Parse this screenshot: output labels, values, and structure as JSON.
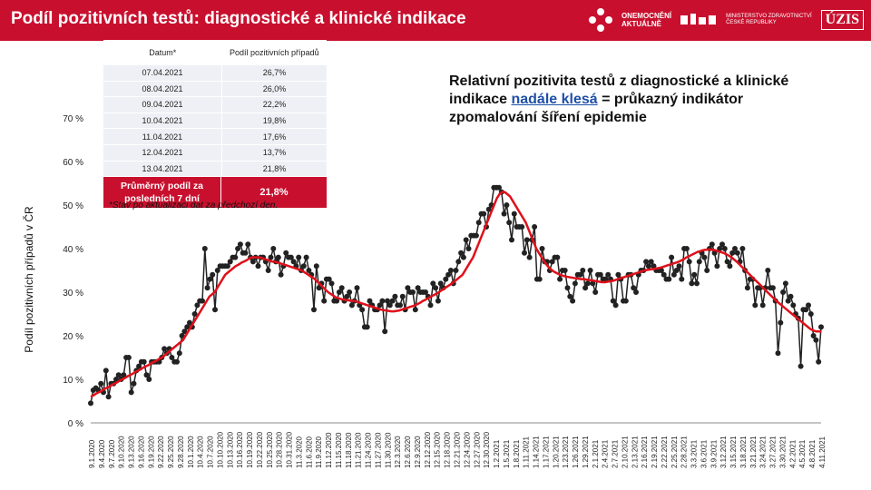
{
  "header": {
    "title": "Podíl pozitivních testů: diagnostické a klinické indikace",
    "logo_onemocneni": "ONEMOCNĚNÍ",
    "logo_aktualne": "AKTUÁLNĚ",
    "logo_mzcr_line1": "MINISTERSTVO ZDRAVOTNICTVÍ",
    "logo_mzcr_line2": "ČESKÉ REPUBLIKY",
    "logo_uzis": "ÚZIS",
    "colors": {
      "bar": "#c8102e",
      "text": "#ffffff"
    }
  },
  "headline": {
    "part1": "Relativní pozitivita testů z diagnostické a klinické indikace ",
    "highlight": "nadále klesá",
    "part2": " = průkazný indikátor zpomalování šíření epidemie",
    "highlight_color": "#1f4fa8"
  },
  "table": {
    "col1_header": "Datum*",
    "col2_header": "Podíl pozitivních případů",
    "rows": [
      {
        "date": "07.04.2021",
        "value": "26,7%"
      },
      {
        "date": "08.04.2021",
        "value": "26,0%"
      },
      {
        "date": "09.04.2021",
        "value": "22,2%"
      },
      {
        "date": "10.04.2021",
        "value": "19,8%"
      },
      {
        "date": "11.04.2021",
        "value": "17,6%"
      },
      {
        "date": "12.04.2021",
        "value": "13,7%"
      },
      {
        "date": "13.04.2021",
        "value": "21,8%"
      }
    ],
    "avg_label": "Průměrný podíl za posledních 7 dní",
    "avg_value": "21,8%",
    "note": "*Stav po aktualizaci dat za předchozí den."
  },
  "chart_data": {
    "type": "line",
    "ylabel": "Podíl pozitivních případů v ČR",
    "ylim": [
      0,
      70
    ],
    "yticks": [
      "0 %",
      "10 %",
      "20 %",
      "30 %",
      "40 %",
      "50 %",
      "60 %",
      "70 %"
    ],
    "x_tick_labels": [
      "9.1.2020",
      "9.4.2020",
      "9.7.2020",
      "9.10.2020",
      "9.13.2020",
      "9.16.2020",
      "9.19.2020",
      "9.22.2020",
      "9.25.2020",
      "9.28.2020",
      "10.1.2020",
      "10.4.2020",
      "10.7.2020",
      "10.10.2020",
      "10.13.2020",
      "10.16.2020",
      "10.19.2020",
      "10.22.2020",
      "10.25.2020",
      "10.28.2020",
      "10.31.2020",
      "11.3.2020",
      "11.6.2020",
      "11.9.2020",
      "11.12.2020",
      "11.15.2020",
      "11.18.2020",
      "11.21.2020",
      "11.24.2020",
      "11.27.2020",
      "11.30.2020",
      "12.3.2020",
      "12.6.2020",
      "12.9.2020",
      "12.12.2020",
      "12.15.2020",
      "12.18.2020",
      "12.21.2020",
      "12.24.2020",
      "12.27.2020",
      "12.30.2020",
      "1.2.2021",
      "1.5.2021",
      "1.8.2021",
      "1.11.2021",
      "1.14.2021",
      "1.17.2021",
      "1.20.2021",
      "1.23.2021",
      "1.26.2021",
      "1.29.2021",
      "2.1.2021",
      "2.4.2021",
      "2.7.2021",
      "2.10.2021",
      "2.13.2021",
      "2.16.2021",
      "2.19.2021",
      "2.22.2021",
      "2.25.2021",
      "2.28.2021",
      "3.3.2021",
      "3.6.2021",
      "3.9.2021",
      "3.12.2021",
      "3.15.2021",
      "3.18.2021",
      "3.21.2021",
      "3.24.2021",
      "3.27.2021",
      "3.30.2021",
      "4.2.2021",
      "4.5.2021",
      "4.8.2021",
      "4.11.2021"
    ],
    "series": [
      {
        "color": "#222222",
        "values": [
          4.5,
          7.5,
          8,
          7.5,
          9,
          7,
          12,
          6,
          9,
          9,
          10,
          11,
          10,
          11,
          15,
          15,
          7,
          9,
          12,
          13,
          14,
          14,
          11,
          10,
          14,
          14,
          14,
          14,
          15,
          17,
          16,
          17,
          15,
          14,
          14,
          16,
          20,
          21,
          22,
          23,
          22,
          25,
          27,
          28,
          28,
          40,
          31,
          33,
          34,
          26,
          35,
          36,
          36,
          36,
          36,
          37,
          38,
          38,
          40,
          41,
          39,
          39,
          41,
          38,
          37,
          38,
          36,
          38,
          38,
          37,
          35,
          38,
          40,
          37,
          38,
          34,
          36,
          39,
          38,
          38,
          37,
          36,
          38,
          35,
          36,
          38,
          35,
          34,
          26,
          36,
          31,
          32,
          28,
          33,
          33,
          32,
          28,
          28,
          30,
          31,
          28,
          29,
          30,
          27,
          28,
          31,
          27,
          26,
          22,
          22,
          28,
          27,
          26,
          26,
          27,
          28,
          21,
          28,
          27,
          28,
          29,
          27,
          27,
          29,
          26,
          31,
          30,
          30,
          26,
          31,
          30,
          30,
          30,
          29,
          27,
          32,
          31,
          28,
          32,
          31,
          33,
          34,
          35,
          32,
          35,
          37,
          39,
          38,
          42,
          40,
          43,
          43,
          43,
          46,
          48,
          48,
          45,
          49,
          50,
          54,
          54,
          54,
          53,
          48,
          50,
          46,
          42,
          48,
          45,
          45,
          45,
          39,
          42,
          38,
          42,
          45,
          33,
          33,
          40,
          37,
          37,
          35,
          37,
          38,
          38,
          33,
          35,
          35,
          31,
          29,
          28,
          32,
          34,
          34,
          35,
          31,
          32,
          35,
          32,
          30,
          34,
          34,
          33,
          33,
          34,
          33,
          28,
          27,
          34,
          33,
          28,
          28,
          34,
          34,
          31,
          30,
          34,
          35,
          35,
          37,
          36,
          37,
          36,
          35,
          35,
          35,
          34,
          33,
          33,
          38,
          34,
          35,
          36,
          33,
          40,
          40,
          37,
          32,
          34,
          32,
          37,
          39,
          38,
          35,
          40,
          41,
          39,
          36,
          40,
          41,
          40,
          37,
          36,
          39,
          40,
          39,
          37,
          40,
          35,
          31,
          33,
          33,
          27,
          31,
          31,
          27,
          31,
          35,
          31,
          31,
          28,
          16,
          23,
          30,
          32,
          28,
          29,
          27,
          25,
          24,
          13,
          26,
          26,
          27,
          25,
          20,
          19,
          14,
          22
        ]
      },
      {
        "color": "#e0101a",
        "values": [
          6,
          6.3,
          6.7,
          7,
          7.3,
          7.7,
          8,
          8.3,
          8.7,
          9,
          9.3,
          9.7,
          10,
          10.3,
          10.7,
          11,
          11.3,
          11.7,
          12,
          12.3,
          12.7,
          13,
          13.3,
          13.7,
          14,
          14.3,
          14.7,
          15,
          15.5,
          16,
          16.5,
          17,
          17.5,
          18,
          18.5,
          19,
          20,
          21,
          22,
          23,
          24,
          25,
          26,
          27,
          28,
          29,
          29.5,
          30,
          31,
          32,
          33,
          34,
          34.5,
          35,
          35.5,
          36,
          36.3,
          36.7,
          37,
          37.3,
          37.7,
          38,
          38,
          38,
          38,
          37.8,
          37.6,
          37.4,
          37.2,
          37,
          37,
          36.8,
          36.6,
          36.4,
          36.2,
          36,
          35.8,
          35.6,
          35.4,
          35.2,
          35,
          34.6,
          34.2,
          33.8,
          33.4,
          33,
          32.4,
          31.8,
          31.2,
          30.6,
          30,
          29.6,
          29.2,
          28.8,
          28.6,
          28.4,
          28.3,
          28.2,
          28.1,
          28,
          28,
          27.8,
          27.6,
          27.4,
          27.2,
          27,
          26.8,
          26.6,
          26.4,
          26.2,
          26,
          25.9,
          25.8,
          25.7,
          25.6,
          25.6,
          25.7,
          25.8,
          26,
          26.2,
          26.4,
          26.6,
          26.8,
          27,
          27.3,
          27.6,
          28,
          28.3,
          28.6,
          29,
          29.3,
          29.6,
          30,
          30.4,
          30.8,
          31.2,
          31.6,
          32,
          32.5,
          33,
          33.5,
          34,
          35,
          36,
          37,
          38,
          39.5,
          41,
          42.5,
          44,
          45.5,
          47,
          48.5,
          50,
          51.5,
          52.5,
          53,
          53,
          52.5,
          52,
          51,
          50,
          49,
          48,
          47,
          46,
          44.5,
          43,
          41.5,
          40,
          39,
          38,
          37,
          36.2,
          35.5,
          35,
          34.6,
          34.3,
          34,
          33.8,
          33.6,
          33.5,
          33.4,
          33.3,
          33.2,
          33.1,
          33,
          33,
          32.9,
          32.8,
          32.7,
          32.6,
          32.5,
          32.4,
          32.3,
          32.3,
          32.4,
          32.5,
          32.6,
          32.8,
          33,
          33.2,
          33.4,
          33.6,
          33.8,
          34,
          34.2,
          34.4,
          34.6,
          34.8,
          35,
          35.1,
          35.2,
          35.3,
          35.4,
          35.5,
          35.6,
          35.8,
          36,
          36.2,
          36.4,
          36.6,
          36.8,
          37,
          37.3,
          37.6,
          38,
          38.3,
          38.6,
          38.9,
          39.2,
          39.4,
          39.6,
          39.7,
          39.8,
          39.8,
          39.7,
          39.6,
          39.4,
          39.2,
          39,
          38.7,
          38.4,
          38,
          37.5,
          37,
          36.4,
          35.8,
          35.2,
          34.6,
          34,
          33.4,
          32.8,
          32.2,
          31.6,
          31,
          30.4,
          29.8,
          29.2,
          28.6,
          28,
          27.5,
          27,
          26.5,
          26,
          25.5,
          25,
          24.5,
          24,
          23.5,
          23,
          22.5,
          22,
          21.5,
          21.2,
          21,
          21,
          21
        ]
      }
    ],
    "grid": false,
    "legend": "none"
  }
}
